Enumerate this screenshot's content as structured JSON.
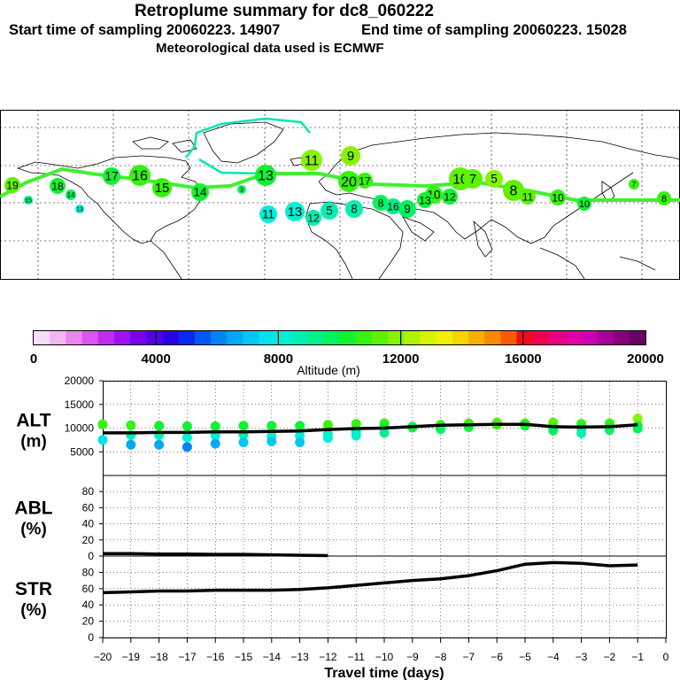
{
  "header": {
    "title": "Retroplume summary for dc8_060222",
    "start": "Start time of sampling 20060223. 14907",
    "end": "End time of sampling 20060223. 15028",
    "met": "Meteorological data used is ECMWF"
  },
  "colorbar": {
    "ticks": [
      "0",
      "4000",
      "8000",
      "12000",
      "16000",
      "20000"
    ],
    "label": "Altitude (m)",
    "colors": [
      "#f6dcf6",
      "#f2b6f2",
      "#ea86ee",
      "#dc55ee",
      "#c22cf0",
      "#9e12f0",
      "#7a00ea",
      "#5200e6",
      "#2c00e6",
      "#0c28ee",
      "#0058f4",
      "#0084f4",
      "#00a8f6",
      "#00c6f6",
      "#00e2ee",
      "#00f0d6",
      "#00f0b2",
      "#00f08a",
      "#00f25c",
      "#10f232",
      "#36f20e",
      "#5cf200",
      "#86f400",
      "#aef400",
      "#d4f600",
      "#f0f000",
      "#f6d400",
      "#f6b000",
      "#f68a00",
      "#f65c00",
      "#f20c1e",
      "#f00050",
      "#ea0082",
      "#e000a6",
      "#cc00b2",
      "#a8009a",
      "#86007e",
      "#6a0062"
    ]
  },
  "map": {
    "labels": [
      "19",
      "15",
      "18",
      "14",
      "13",
      "17",
      "16",
      "15",
      "14",
      "13",
      "11",
      "13",
      "12",
      "11",
      "9",
      "8",
      "8",
      "9",
      "10",
      "10",
      "7",
      "5",
      "8",
      "10",
      "7",
      "8",
      "3",
      "5",
      "20",
      "17",
      "16",
      "13",
      "12",
      "11",
      "10"
    ]
  },
  "chart_data": [
    {
      "type": "scatter",
      "name": "ALT",
      "ylabel": "ALT\n(m)",
      "ylim": [
        0,
        20000
      ],
      "yticks": [
        5000,
        10000,
        15000,
        20000
      ],
      "x": [
        -20,
        -19,
        -18,
        -17,
        -16,
        -15,
        -14,
        -13,
        -12,
        -11,
        -10,
        -9,
        -8,
        -7,
        -6,
        -5,
        -4,
        -3,
        -2,
        -1
      ],
      "mean_altitude_m": [
        9000,
        9000,
        9100,
        9100,
        9200,
        9200,
        9300,
        9400,
        9700,
        9900,
        10000,
        10300,
        10600,
        10700,
        10800,
        10800,
        10300,
        10200,
        10300,
        10700
      ],
      "plume_points_m": [
        [
          -20,
          10800
        ],
        [
          -20,
          7500
        ],
        [
          -19,
          10600
        ],
        [
          -19,
          8500
        ],
        [
          -19,
          6500
        ],
        [
          -18,
          10500
        ],
        [
          -18,
          8500
        ],
        [
          -18,
          6500
        ],
        [
          -17,
          10400
        ],
        [
          -17,
          8000
        ],
        [
          -17,
          6000
        ],
        [
          -16,
          10400
        ],
        [
          -16,
          8400
        ],
        [
          -16,
          6700
        ],
        [
          -15,
          10500
        ],
        [
          -15,
          8600
        ],
        [
          -15,
          7000
        ],
        [
          -14,
          10500
        ],
        [
          -14,
          8300
        ],
        [
          -14,
          7200
        ],
        [
          -13,
          10500
        ],
        [
          -13,
          8400
        ],
        [
          -13,
          7000
        ],
        [
          -12,
          10700
        ],
        [
          -12,
          8700
        ],
        [
          -12,
          7900
        ],
        [
          -11,
          10900
        ],
        [
          -11,
          9300
        ],
        [
          -11,
          8400
        ],
        [
          -10,
          11000
        ],
        [
          -10,
          10300
        ],
        [
          -10,
          9000
        ],
        [
          -9,
          10300
        ],
        [
          -9,
          10100
        ],
        [
          -8,
          10700
        ],
        [
          -8,
          9800
        ],
        [
          -7,
          11000
        ],
        [
          -7,
          10200
        ],
        [
          -6,
          11200
        ],
        [
          -6,
          10700
        ],
        [
          -5,
          11000
        ],
        [
          -5,
          10500
        ],
        [
          -4,
          11200
        ],
        [
          -4,
          10000
        ],
        [
          -4,
          9500
        ],
        [
          -3,
          10900
        ],
        [
          -3,
          9900
        ],
        [
          -3,
          8900
        ],
        [
          -2,
          11000
        ],
        [
          -2,
          10100
        ],
        [
          -2,
          9600
        ],
        [
          -1,
          12000
        ],
        [
          -1,
          10500
        ],
        [
          -1,
          9900
        ]
      ]
    },
    {
      "type": "line",
      "name": "ABL",
      "ylabel": "ABL\n(%)",
      "ylim": [
        0,
        100
      ],
      "yticks": [
        0,
        20,
        40,
        60,
        80
      ],
      "x": [
        -20,
        -19,
        -18,
        -17,
        -16,
        -15,
        -14,
        -13,
        -12
      ],
      "values": [
        3,
        3,
        2.5,
        2.5,
        2,
        2,
        1.5,
        1,
        0.5
      ]
    },
    {
      "type": "line",
      "name": "STR",
      "ylabel": "STR\n(%)",
      "ylim": [
        0,
        100
      ],
      "yticks": [
        0,
        20,
        40,
        60,
        80
      ],
      "x": [
        -20,
        -19,
        -18,
        -17,
        -16,
        -15,
        -14,
        -13,
        -12,
        -11,
        -10,
        -9,
        -8,
        -7,
        -6,
        -5,
        -4,
        -3,
        -2,
        -1
      ],
      "values": [
        55,
        56,
        57,
        57,
        58,
        58,
        58,
        59,
        61,
        64,
        67,
        70,
        72,
        76,
        82,
        90,
        92,
        91,
        88,
        89
      ]
    }
  ],
  "xaxis": {
    "ticks": [
      -20,
      -19,
      -18,
      -17,
      -16,
      -15,
      -14,
      -13,
      -12,
      -11,
      -10,
      -9,
      -8,
      -7,
      -6,
      -5,
      -4,
      -3,
      -2,
      -1,
      0
    ],
    "tick_labels": [
      "−20",
      "−19",
      "−18",
      "−17",
      "−16",
      "−15",
      "−14",
      "−13",
      "−12",
      "−11",
      "−10",
      "−9",
      "−8",
      "−7",
      "−6",
      "−5",
      "−4",
      "−3",
      "−2",
      "−1",
      "0"
    ],
    "label": "Travel time (days)"
  }
}
